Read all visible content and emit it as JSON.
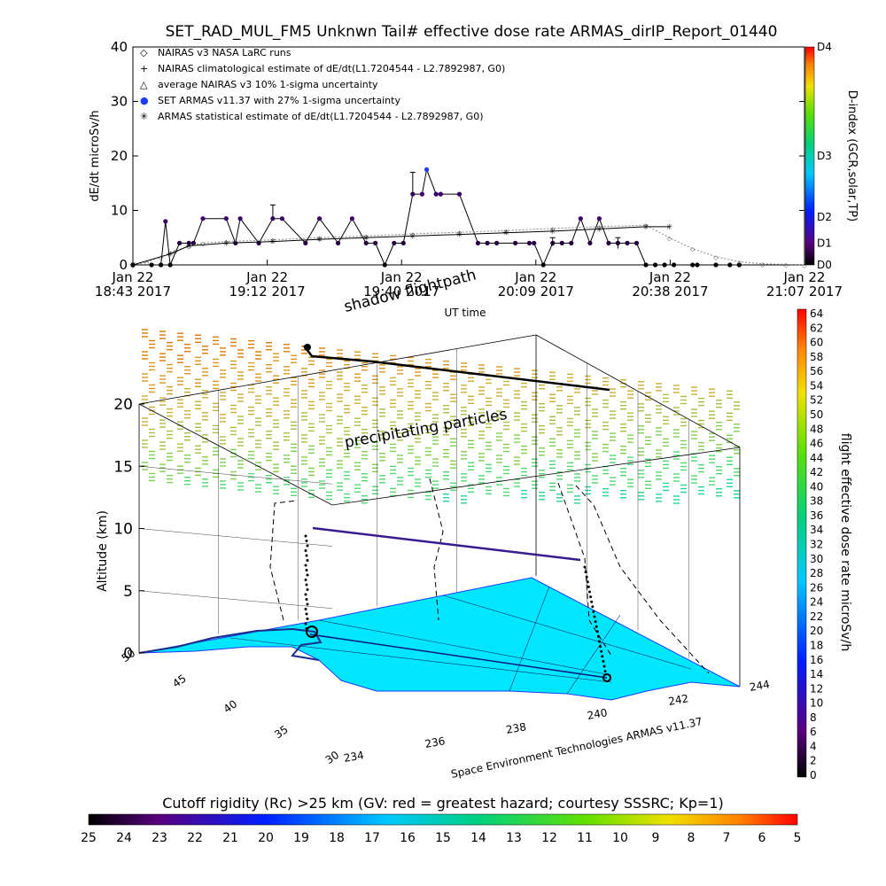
{
  "chart_title": "SET_RAD_MUL_FM5 Unknwn Tail#  effective dose rate ARMAS_dirIP_Report_01440",
  "timeseries": {
    "ylabel": "dE/dt microSv/h",
    "xlabel": "UT time",
    "y_ticks": [
      "0",
      "10",
      "20",
      "30",
      "40"
    ],
    "x_ticks": [
      {
        "line1": "Jan 22",
        "line2": "18:43 2017"
      },
      {
        "line1": "Jan 22",
        "line2": "19:12 2017"
      },
      {
        "line1": "Jan 22",
        "line2": "19:40 2017"
      },
      {
        "line1": "Jan 22",
        "line2": "20:09 2017"
      },
      {
        "line1": "Jan 22",
        "line2": "20:38 2017"
      },
      {
        "line1": "Jan 22",
        "line2": "21:07 2017"
      }
    ],
    "legend": [
      {
        "symbol": "◇",
        "text": "NAIRAS v3 NASA LaRC runs"
      },
      {
        "symbol": "+",
        "text": "NAIRAS climatological estimate of dE/dt(L1.7204544 - L2.7892987, G0)"
      },
      {
        "symbol": "△",
        "text": "average NAIRAS v3 10% 1-sigma uncertainty"
      },
      {
        "symbol": "●",
        "text": "SET ARMAS v11.37 with 27% 1-sigma uncertainty"
      },
      {
        "symbol": "✳",
        "text": "ARMAS statistical estimate of dE/dt(L1.7204544 - L2.7892987, G0)"
      }
    ],
    "dindex_label": "D-index (GCR,solar,TP)",
    "dindex_ticks": [
      "D4",
      "D3",
      "D2",
      "D1",
      "D0"
    ]
  },
  "chart_data": [
    {
      "type": "line",
      "title": "SET_RAD_MUL_FM5 Unknwn Tail#  effective dose rate ARMAS_dirIP_Report_01440",
      "xlabel": "UT time",
      "ylabel": "dE/dt microSv/h",
      "ylim": [
        0,
        40
      ],
      "xlim": [
        "18:43",
        "21:07"
      ],
      "x_unit": "UT minutes after 18:43",
      "series": [
        {
          "name": "SET ARMAS v11.37 with 27% 1-sigma uncertainty",
          "x": [
            0,
            4,
            6,
            7,
            8,
            10,
            12,
            13,
            15,
            20,
            22,
            23,
            27,
            30,
            32,
            37,
            40,
            44,
            47,
            50,
            52,
            54,
            56,
            58,
            60,
            62,
            63,
            65,
            66,
            70,
            74,
            76,
            78,
            82,
            85,
            86,
            88,
            90,
            92,
            94,
            96,
            98,
            100,
            102,
            104,
            106,
            108,
            110,
            112,
            114,
            116,
            120,
            121,
            125,
            128,
            130
          ],
          "y": [
            0,
            0,
            0,
            8,
            0,
            4,
            4,
            4,
            8.5,
            8.5,
            4,
            8.5,
            4,
            8.5,
            8.5,
            4,
            8.5,
            4,
            8.5,
            4,
            4,
            0,
            4,
            4,
            13,
            13,
            17.5,
            13,
            13,
            13,
            4,
            4,
            4,
            4,
            4,
            4,
            0,
            4,
            4,
            4,
            8.5,
            4,
            8.5,
            4,
            4,
            4,
            4,
            0,
            0,
            0,
            0,
            0,
            0,
            0,
            0,
            0
          ]
        },
        {
          "name": "NAIRAS v3 NASA LaRC runs",
          "x": [
            0,
            3,
            6,
            9,
            12,
            15,
            20,
            30,
            40,
            50,
            60,
            70,
            80,
            90,
            100,
            110,
            115,
            120,
            125,
            130,
            135,
            140,
            144
          ],
          "y": [
            0,
            0.5,
            1.5,
            2.5,
            3.5,
            4,
            4.3,
            4.6,
            5,
            5.3,
            5.7,
            6,
            6.3,
            6.7,
            7,
            7.3,
            5,
            3,
            1.5,
            0.6,
            0.2,
            0.1,
            0
          ]
        },
        {
          "name": "ARMAS statistical estimate of dE/dt(L1.7204544 - L2.7892987, G0)",
          "x": [
            0,
            8,
            12,
            20,
            30,
            40,
            50,
            60,
            70,
            80,
            90,
            100,
            110,
            115
          ],
          "y": [
            0,
            2,
            3.5,
            4,
            4.3,
            4.7,
            5,
            5.3,
            5.6,
            5.9,
            6.2,
            6.6,
            7,
            7
          ]
        }
      ]
    },
    {
      "type": "scatter",
      "title": "",
      "xlabel": "",
      "ylabel": "Altitude (km)",
      "zlim": [
        0,
        20
      ],
      "z_ticks": [
        "0",
        "5",
        "10",
        "15",
        "20"
      ],
      "lat_ticks": [
        "30",
        "35",
        "40",
        "45",
        "50"
      ],
      "lon_ticks": [
        "234",
        "236",
        "238",
        "240",
        "242",
        "244"
      ],
      "colorbar_label": "flight effective dose rate microSv/h",
      "colorbar_ticks": [
        "64",
        "62",
        "60",
        "58",
        "56",
        "54",
        "52",
        "50",
        "48",
        "46",
        "44",
        "42",
        "40",
        "38",
        "36",
        "34",
        "32",
        "30",
        "28",
        "26",
        "24",
        "22",
        "20",
        "18",
        "16",
        "14",
        "12",
        "10",
        "8",
        "6",
        "4",
        "2",
        "0"
      ],
      "annotations": [
        "shadow flightpath",
        "precipitating particles",
        "Space Environment Technologies ARMAS v11.37"
      ],
      "series": []
    }
  ],
  "bottom_colorbar": {
    "title": "Cutoff rigidity (Rc) >25 km (GV: red = greatest hazard; courtesy SSSRC; Kp=1)",
    "ticks": [
      "25",
      "24",
      "23",
      "22",
      "21",
      "20",
      "19",
      "18",
      "17",
      "16",
      "15",
      "14",
      "13",
      "12",
      "11",
      "10",
      "9",
      "8",
      "7",
      "6",
      "5"
    ]
  }
}
